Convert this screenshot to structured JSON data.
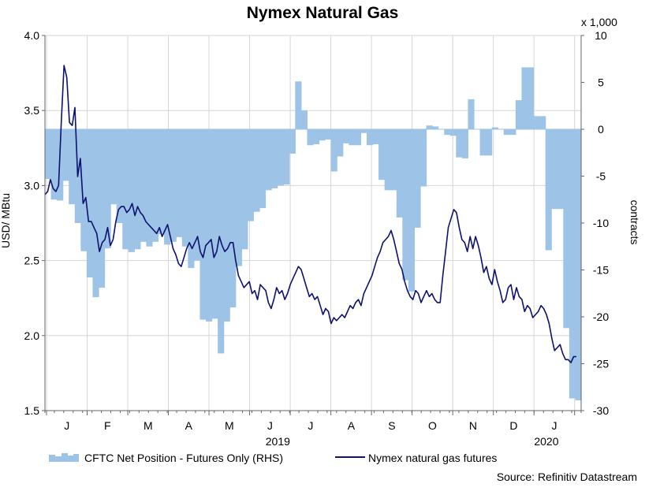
{
  "chart_data": {
    "type": "area+line",
    "title": "Nymex Natural Gas",
    "left_axis": {
      "label": "USD/ MBtu",
      "range": [
        1.5,
        4.0
      ],
      "ticks": [
        "4.0",
        "3.5",
        "3.0",
        "2.5",
        "2.0",
        "1.5"
      ]
    },
    "right_axis": {
      "label": "contracts",
      "multiplier": "x 1,000",
      "range": [
        -30,
        10
      ],
      "ticks": [
        "10",
        "5",
        "0",
        "-5",
        "-10",
        "-15",
        "-20",
        "-25",
        "-30"
      ]
    },
    "x_axis": {
      "month_labels": [
        "J",
        "F",
        "M",
        "A",
        "M",
        "J",
        "J",
        "A",
        "S",
        "O",
        "N",
        "D",
        "J"
      ],
      "year_labels": [
        "2019",
        "2020"
      ],
      "range_weeks": [
        0,
        57
      ]
    },
    "grid": true,
    "legend": {
      "placement": "bottom"
    },
    "series": [
      {
        "name": "CFTC Net Position - Futures Only (RHS)",
        "axis": "right",
        "color": "#9dc3e6",
        "values": [
          -5.3,
          -7.5,
          -7.6,
          -5.5,
          -8.0,
          -10.0,
          -13.0,
          -15.8,
          -17.9,
          -16.9,
          -12.7,
          -8.0,
          -10.0,
          -12.8,
          -13.1,
          -12.8,
          -12.0,
          -12.5,
          -12.0,
          -11.2,
          -12.3,
          -12.0,
          -11.5,
          -12.5,
          -14.8,
          -14.0,
          -20.3,
          -20.5,
          -20.2,
          -23.9,
          -20.5,
          -19.0,
          -14.6,
          -12.8,
          -9.8,
          -8.8,
          -8.4,
          -6.5,
          -6.3,
          -6.0,
          -5.9,
          -2.6,
          5.1,
          2.0,
          -1.7,
          -1.6,
          -1.2,
          -1.1,
          -4.5,
          -2.9,
          -1.5,
          -1.7,
          -1.7,
          -0.4,
          -1.7,
          -1.6,
          -5.4,
          -6.5,
          -6.5,
          -9.4,
          -16.1,
          -17.3,
          -10.5,
          -6.1,
          0.4,
          0.3,
          0.0,
          -0.6,
          -0.7,
          -3.0,
          -3.1,
          3.2,
          0.0,
          -2.8,
          -2.8,
          0.2,
          0.0,
          -0.6,
          -0.6,
          3.1,
          6.6,
          6.6,
          1.4,
          1.4,
          -12.9,
          -8.5,
          -8.5,
          -21.2,
          -28.7,
          -28.9
        ],
        "weeks_step": 0.6333
      },
      {
        "name": "Nymex natural gas futures",
        "axis": "left",
        "color": "#0d1170",
        "values": [
          2.94,
          2.96,
          3.04,
          2.98,
          2.96,
          3.0,
          3.42,
          3.8,
          3.72,
          3.42,
          3.4,
          3.52,
          3.06,
          3.18,
          2.88,
          2.92,
          2.76,
          2.76,
          2.72,
          2.68,
          2.56,
          2.62,
          2.64,
          2.72,
          2.6,
          2.64,
          2.76,
          2.84,
          2.86,
          2.86,
          2.82,
          2.84,
          2.88,
          2.8,
          2.86,
          2.82,
          2.8,
          2.76,
          2.74,
          2.72,
          2.7,
          2.68,
          2.72,
          2.66,
          2.7,
          2.74,
          2.66,
          2.58,
          2.54,
          2.48,
          2.46,
          2.52,
          2.58,
          2.62,
          2.58,
          2.62,
          2.66,
          2.56,
          2.52,
          2.6,
          2.62,
          2.64,
          2.52,
          2.56,
          2.66,
          2.6,
          2.56,
          2.58,
          2.62,
          2.62,
          2.5,
          2.4,
          2.36,
          2.32,
          2.34,
          2.36,
          2.28,
          2.3,
          2.24,
          2.34,
          2.32,
          2.3,
          2.22,
          2.18,
          2.24,
          2.32,
          2.28,
          2.3,
          2.24,
          2.28,
          2.34,
          2.38,
          2.42,
          2.46,
          2.44,
          2.38,
          2.32,
          2.26,
          2.28,
          2.24,
          2.26,
          2.2,
          2.14,
          2.18,
          2.16,
          2.08,
          2.12,
          2.1,
          2.12,
          2.14,
          2.12,
          2.16,
          2.2,
          2.18,
          2.22,
          2.24,
          2.2,
          2.28,
          2.32,
          2.36,
          2.4,
          2.46,
          2.52,
          2.56,
          2.62,
          2.64,
          2.66,
          2.7,
          2.64,
          2.56,
          2.48,
          2.44,
          2.36,
          2.3,
          2.26,
          2.24,
          2.3,
          2.28,
          2.22,
          2.26,
          2.3,
          2.26,
          2.28,
          2.24,
          2.22,
          2.22,
          2.4,
          2.56,
          2.72,
          2.78,
          2.84,
          2.82,
          2.72,
          2.64,
          2.62,
          2.56,
          2.66,
          2.58,
          2.66,
          2.6,
          2.52,
          2.42,
          2.46,
          2.38,
          2.34,
          2.44,
          2.36,
          2.3,
          2.22,
          2.24,
          2.32,
          2.34,
          2.24,
          2.32,
          2.26,
          2.24,
          2.16,
          2.2,
          2.18,
          2.12,
          2.14,
          2.16,
          2.2,
          2.18,
          2.14,
          2.08,
          1.98,
          1.9,
          1.92,
          1.94,
          1.88,
          1.84,
          1.84,
          1.82,
          1.86,
          1.86
        ],
        "weeks_step": 0.2948
      }
    ],
    "source": "Source: Refinitiv Datastream"
  }
}
